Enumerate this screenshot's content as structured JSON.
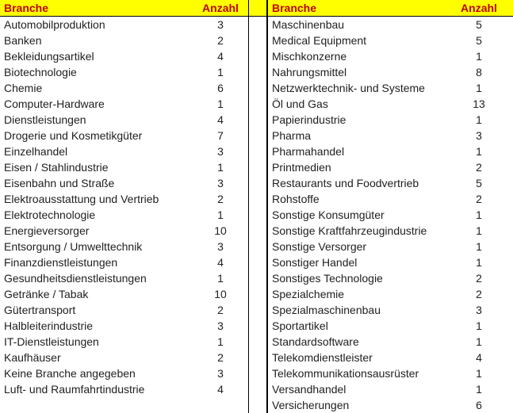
{
  "colors": {
    "header_bg": "#ffff00",
    "header_text": "#c00000",
    "body_text": "#212121",
    "border": "#000000"
  },
  "left_table": {
    "header": {
      "branche": "Branche",
      "anzahl": "Anzahl"
    },
    "rows": [
      {
        "branche": "Automobilproduktion",
        "anzahl": "3"
      },
      {
        "branche": "Banken",
        "anzahl": "2"
      },
      {
        "branche": "Bekleidungsartikel",
        "anzahl": "4"
      },
      {
        "branche": "Biotechnologie",
        "anzahl": "1"
      },
      {
        "branche": "Chemie",
        "anzahl": "6"
      },
      {
        "branche": "Computer-Hardware",
        "anzahl": "1"
      },
      {
        "branche": "Dienstleistungen",
        "anzahl": "4"
      },
      {
        "branche": "Drogerie und Kosmetikgüter",
        "anzahl": "7"
      },
      {
        "branche": "Einzelhandel",
        "anzahl": "3"
      },
      {
        "branche": "Eisen / Stahlindustrie",
        "anzahl": "1"
      },
      {
        "branche": "Eisenbahn und Straße",
        "anzahl": "3"
      },
      {
        "branche": "Elektroausstattung und Vertrieb",
        "anzahl": "2"
      },
      {
        "branche": "Elektrotechnologie",
        "anzahl": "1"
      },
      {
        "branche": "Energieversorger",
        "anzahl": "10"
      },
      {
        "branche": "Entsorgung / Umwelttechnik",
        "anzahl": "3"
      },
      {
        "branche": "Finanzdienstleistungen",
        "anzahl": "4"
      },
      {
        "branche": "Gesundheitsdienstleistungen",
        "anzahl": "1"
      },
      {
        "branche": "Getränke / Tabak",
        "anzahl": "10"
      },
      {
        "branche": "Gütertransport",
        "anzahl": "2"
      },
      {
        "branche": "Halbleiterindustrie",
        "anzahl": "3"
      },
      {
        "branche": "IT-Dienstleistungen",
        "anzahl": "1"
      },
      {
        "branche": "Kaufhäuser",
        "anzahl": "2"
      },
      {
        "branche": "Keine Branche angegeben",
        "anzahl": "3"
      },
      {
        "branche": "Luft- und Raumfahrtindustrie",
        "anzahl": "4"
      }
    ]
  },
  "right_table": {
    "header": {
      "branche": "Branche",
      "anzahl": "Anzahl"
    },
    "rows": [
      {
        "branche": "Maschinenbau",
        "anzahl": "5"
      },
      {
        "branche": "Medical Equipment",
        "anzahl": "5"
      },
      {
        "branche": "Mischkonzerne",
        "anzahl": "1"
      },
      {
        "branche": "Nahrungsmittel",
        "anzahl": "8"
      },
      {
        "branche": "Netzwerktechnik- und Systeme",
        "anzahl": "1"
      },
      {
        "branche": "Öl und Gas",
        "anzahl": "13"
      },
      {
        "branche": "Papierindustrie",
        "anzahl": "1"
      },
      {
        "branche": "Pharma",
        "anzahl": "3"
      },
      {
        "branche": "Pharmahandel",
        "anzahl": "1"
      },
      {
        "branche": "Printmedien",
        "anzahl": "2"
      },
      {
        "branche": "Restaurants und Foodvertrieb",
        "anzahl": "5"
      },
      {
        "branche": "Rohstoffe",
        "anzahl": "2"
      },
      {
        "branche": "Sonstige Konsumgüter",
        "anzahl": "1"
      },
      {
        "branche": "Sonstige Kraftfahrzeugindustrie",
        "anzahl": "1"
      },
      {
        "branche": "Sonstige Versorger",
        "anzahl": "1"
      },
      {
        "branche": "Sonstiger Handel",
        "anzahl": "1"
      },
      {
        "branche": "Sonstiges Technologie",
        "anzahl": "2"
      },
      {
        "branche": "Spezialchemie",
        "anzahl": "2"
      },
      {
        "branche": "Spezialmaschinenbau",
        "anzahl": "3"
      },
      {
        "branche": "Sportartikel",
        "anzahl": "1"
      },
      {
        "branche": "Standardsoftware",
        "anzahl": "1"
      },
      {
        "branche": "Telekomdienstleister",
        "anzahl": "4"
      },
      {
        "branche": "Telekommunikationsausrüster",
        "anzahl": "1"
      },
      {
        "branche": "Versandhandel",
        "anzahl": "1"
      },
      {
        "branche": "Versicherungen",
        "anzahl": "6"
      }
    ]
  }
}
